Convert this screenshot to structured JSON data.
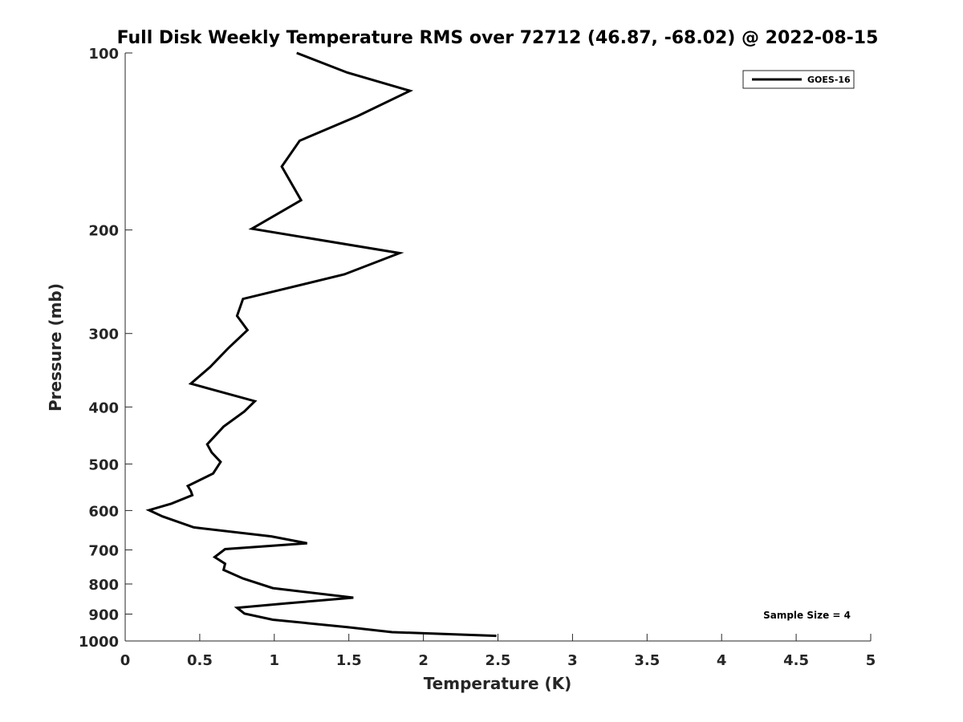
{
  "chart_data": {
    "type": "line",
    "title": "Full Disk Weekly Temperature RMS over 72712 (46.87, -68.02) @ 2022-08-15",
    "xlabel": "Temperature (K)",
    "ylabel": "Pressure (mb)",
    "xlim": [
      0,
      5
    ],
    "ylim": [
      1000,
      100
    ],
    "y_scale": "log",
    "y_reversed": true,
    "x_ticks": [
      "0",
      "0.5",
      "1",
      "1.5",
      "2",
      "2.5",
      "3",
      "3.5",
      "4",
      "4.5",
      "5"
    ],
    "y_ticks": [
      "100",
      "200",
      "300",
      "400",
      "500",
      "600",
      "700",
      "800",
      "900",
      "1000"
    ],
    "grid": false,
    "legend": {
      "placement": "top-right",
      "entries": [
        "GOES-16"
      ]
    },
    "annotation": "Sample Size = 4",
    "series": [
      {
        "name": "GOES-16",
        "color": "#000000",
        "points": [
          [
            1.15,
            100
          ],
          [
            1.49,
            108
          ],
          [
            1.91,
            116
          ],
          [
            1.56,
            128
          ],
          [
            1.17,
            141
          ],
          [
            1.05,
            156
          ],
          [
            1.18,
            178
          ],
          [
            0.85,
            199
          ],
          [
            1.84,
            219
          ],
          [
            1.47,
            238
          ],
          [
            0.79,
            262
          ],
          [
            0.75,
            280
          ],
          [
            0.82,
            296
          ],
          [
            0.69,
            318
          ],
          [
            0.57,
            342
          ],
          [
            0.44,
            365
          ],
          [
            0.87,
            391
          ],
          [
            0.8,
            407
          ],
          [
            0.66,
            432
          ],
          [
            0.55,
            463
          ],
          [
            0.58,
            478
          ],
          [
            0.64,
            496
          ],
          [
            0.59,
            519
          ],
          [
            0.42,
            545
          ],
          [
            0.44,
            556
          ],
          [
            0.45,
            565
          ],
          [
            0.31,
            584
          ],
          [
            0.16,
            599
          ],
          [
            0.25,
            614
          ],
          [
            0.46,
            641
          ],
          [
            0.98,
            664
          ],
          [
            1.22,
            682
          ],
          [
            0.67,
            698
          ],
          [
            0.6,
            720
          ],
          [
            0.67,
            739
          ],
          [
            0.66,
            757
          ],
          [
            0.79,
            783
          ],
          [
            0.99,
            813
          ],
          [
            1.53,
            844
          ],
          [
            1.08,
            863
          ],
          [
            0.75,
            878
          ],
          [
            0.8,
            898
          ],
          [
            0.99,
            920
          ],
          [
            1.49,
            947
          ],
          [
            1.79,
            966
          ],
          [
            2.49,
            980
          ]
        ]
      }
    ]
  }
}
